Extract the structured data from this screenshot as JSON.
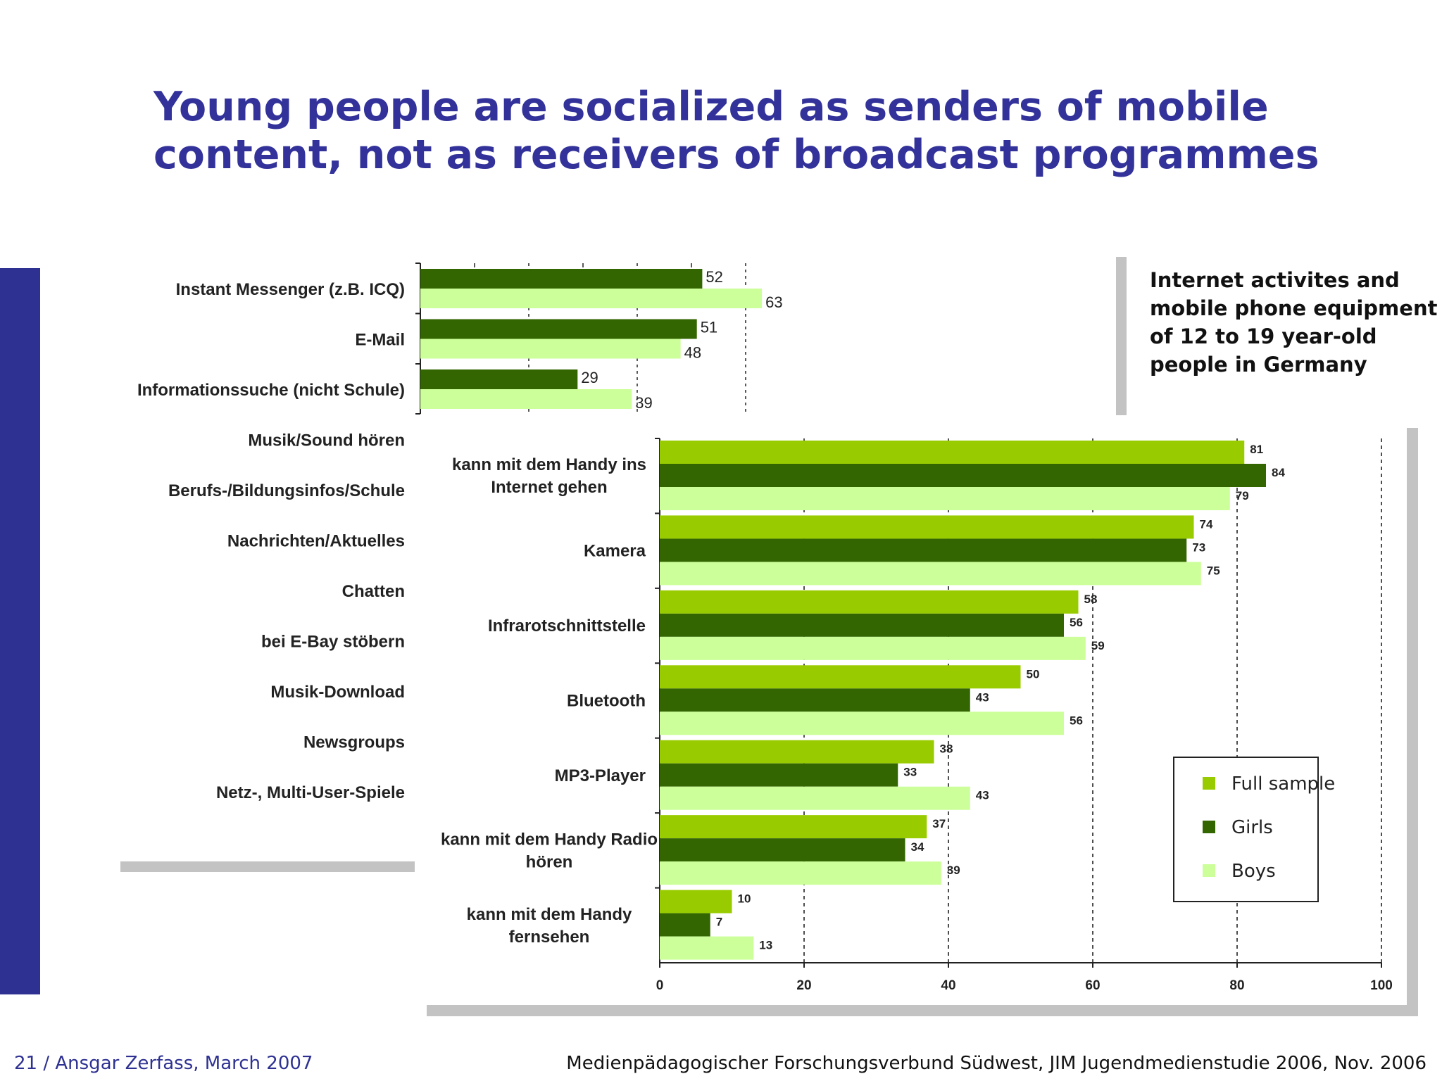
{
  "slide": {
    "title": "Young people are socialized as senders of mobile\ncontent, not as receivers of broadcast programmes",
    "caption": "Internet activites and\nmobile phone equipment\nof 12 to 19 year-old\npeople in Germany",
    "footer_left": "21 / Ansgar Zerfass, March 2007",
    "footer_right": "Medienpädagogischer Forschungsverbund Südwest, JIM Jugendmedienstudie 2006, Nov. 2006"
  },
  "colors": {
    "title": "#32329a",
    "accent": "#2e3192",
    "full_sample": "#99cc00",
    "girls": "#336600",
    "boys": "#ccff99",
    "shadow": "#c3c3c3"
  },
  "chart_data": [
    {
      "type": "bar",
      "orientation": "horizontal",
      "title": "Internet activites",
      "categories": [
        "Instant Messenger (z.B. ICQ)",
        "E-Mail",
        "Informationssuche (nicht Schule)",
        "Musik/Sound hören",
        "Berufs-/Bildungsinfos/Schule",
        "Nachrichten/Aktuelles",
        "Chatten",
        "bei E-Bay stöbern",
        "Musik-Download",
        "Newsgroups",
        "Netz-, Multi-User-Spiele"
      ],
      "series": [
        {
          "name": "Girls",
          "values": [
            52,
            51,
            29,
            null,
            null,
            null,
            null,
            null,
            null,
            null,
            null
          ]
        },
        {
          "name": "Boys",
          "values": [
            63,
            48,
            39,
            null,
            null,
            null,
            null,
            null,
            null,
            null,
            null
          ]
        }
      ],
      "grid": "vertical dashed"
    },
    {
      "type": "bar",
      "orientation": "horizontal",
      "title": "mobile phone equipment",
      "categories": [
        "kann mit dem Handy ins Internet gehen",
        "Kamera",
        "Infrarotschnittstelle",
        "Bluetooth",
        "MP3-Player",
        "kann mit dem Handy Radio hören",
        "kann mit dem Handy fernsehen"
      ],
      "category_lines": [
        [
          "kann mit dem Handy ins",
          "Internet gehen"
        ],
        [
          "Kamera"
        ],
        [
          "Infrarotschnittstelle"
        ],
        [
          "Bluetooth"
        ],
        [
          "MP3-Player"
        ],
        [
          "kann mit dem Handy Radio",
          "hören"
        ],
        [
          "kann mit dem Handy",
          "fernsehen"
        ]
      ],
      "series": [
        {
          "name": "Full sample",
          "values": [
            81,
            74,
            58,
            50,
            38,
            37,
            10
          ]
        },
        {
          "name": "Girls",
          "values": [
            84,
            73,
            56,
            43,
            33,
            34,
            7
          ]
        },
        {
          "name": "Boys",
          "values": [
            79,
            75,
            59,
            56,
            43,
            39,
            13
          ]
        }
      ],
      "xlim": [
        0,
        100
      ],
      "xticks": [
        0,
        20,
        40,
        60,
        80,
        100
      ],
      "grid": "vertical dashed",
      "legend": "bottom-right"
    }
  ]
}
